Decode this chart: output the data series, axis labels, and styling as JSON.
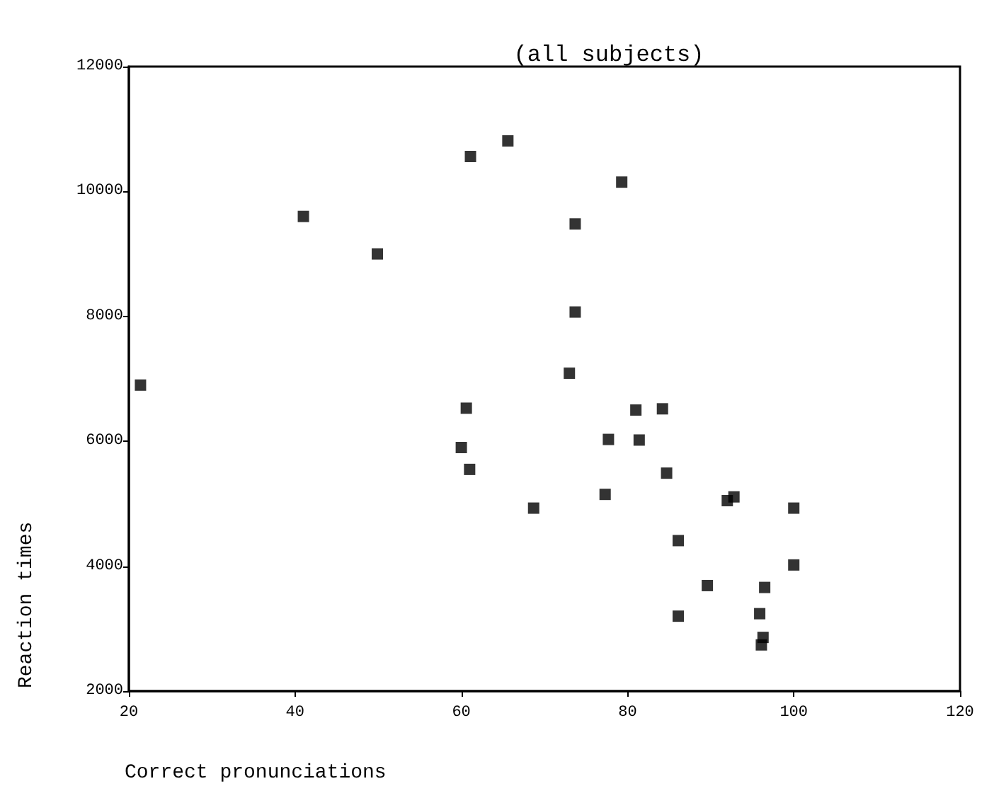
{
  "chart_data": {
    "type": "scatter",
    "title": "(all subjects)",
    "xlabel": "Correct pronunciations",
    "ylabel": "Reaction times",
    "x": [
      21.4,
      41,
      49.9,
      61.1,
      65.6,
      79.3,
      73.7,
      73.7,
      73,
      60.6,
      60,
      61,
      68.7,
      77.7,
      81,
      84.2,
      81.4,
      84.7,
      77.3,
      86.1,
      92,
      92.8,
      100,
      100,
      89.6,
      96.5,
      86.1,
      95.9,
      96.3,
      96.1
    ],
    "values": [
      6900,
      9600,
      9000,
      10560,
      10810,
      10150,
      9480,
      8070,
      7090,
      6530,
      5900,
      5550,
      4930,
      6030,
      6500,
      6520,
      6020,
      5490,
      5150,
      4410,
      5050,
      5110,
      4930,
      4020,
      3690,
      3660,
      3200,
      3240,
      2860,
      2740
    ],
    "color": "#000000",
    "marker": "square",
    "xlim": [
      20,
      120
    ],
    "xticks": [
      20,
      40,
      60,
      80,
      100,
      120
    ],
    "ylim": [
      2000,
      12000
    ],
    "yticks": [
      2000,
      4000,
      6000,
      8000,
      10000,
      12000
    ],
    "grid": false
  }
}
